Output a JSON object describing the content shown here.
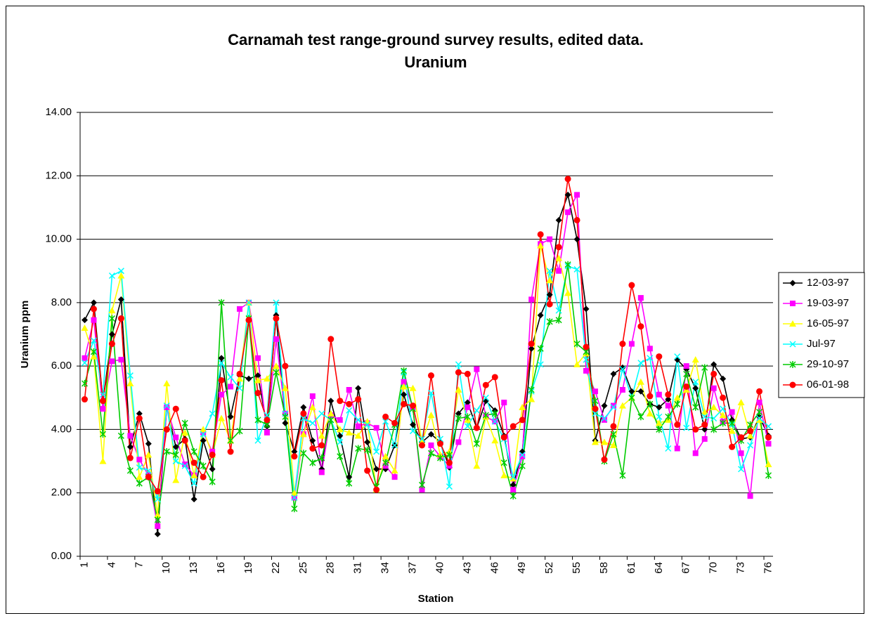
{
  "chart_data": {
    "type": "line",
    "title": [
      "Carnamah test range-ground survey results, edited data.",
      "Uranium"
    ],
    "xlabel": "Station",
    "ylabel": "Uranium ppm",
    "categories": [
      1,
      null,
      null,
      4,
      null,
      null,
      7,
      null,
      null,
      10,
      null,
      null,
      13,
      null,
      null,
      16,
      null,
      null,
      19,
      null,
      null,
      22,
      null,
      null,
      25,
      null,
      null,
      28,
      null,
      null,
      31,
      null,
      null,
      34,
      null,
      null,
      37,
      null,
      null,
      40,
      null,
      null,
      43,
      null,
      null,
      46,
      null,
      null,
      49,
      null,
      null,
      52,
      null,
      null,
      55,
      null,
      null,
      58,
      null,
      null,
      61,
      null,
      null,
      64,
      null,
      null,
      67,
      null,
      null,
      70,
      null,
      null,
      73,
      null,
      null,
      76
    ],
    "ylim": [
      0,
      14
    ],
    "yticks": [
      {
        "value": 0,
        "label": "0.00"
      },
      {
        "value": 2,
        "label": "2.00"
      },
      {
        "value": 4,
        "label": "4.00"
      },
      {
        "value": 6,
        "label": "6.00"
      },
      {
        "value": 8,
        "label": "8.00"
      },
      {
        "value": 10,
        "label": "10.00"
      },
      {
        "value": 12,
        "label": "12.00"
      },
      {
        "value": 14,
        "label": "14.00"
      }
    ],
    "grid": true,
    "legend": "right",
    "series": [
      {
        "name": "12-03-97",
        "color": "#000000",
        "marker": "diamond",
        "values": [
          7.45,
          8.0,
          4.9,
          7.0,
          8.1,
          3.45,
          4.5,
          3.55,
          0.7,
          4.7,
          3.45,
          3.7,
          1.8,
          3.65,
          2.75,
          6.25,
          4.4,
          5.7,
          5.6,
          5.7,
          4.1,
          7.6,
          4.2,
          3.3,
          4.7,
          3.65,
          2.75,
          4.9,
          3.8,
          2.5,
          5.3,
          3.6,
          2.75,
          2.75,
          3.5,
          5.1,
          4.15,
          3.6,
          3.85,
          3.6,
          2.8,
          4.5,
          4.85,
          4.05,
          4.9,
          4.6,
          3.8,
          2.25,
          3.3,
          6.55,
          7.6,
          8.25,
          10.6,
          11.4,
          10.0,
          7.8,
          3.65,
          4.75,
          5.75,
          5.95,
          5.2,
          5.2,
          4.8,
          4.7,
          4.95,
          6.2,
          5.9,
          5.3,
          4.0,
          6.05,
          5.6,
          4.3,
          3.7,
          3.75,
          4.4,
          3.8
        ]
      },
      {
        "name": "19-03-97",
        "color": "#ff00ff",
        "marker": "square",
        "values": [
          6.25,
          7.45,
          4.65,
          6.15,
          6.2,
          3.8,
          3.05,
          2.55,
          0.95,
          4.7,
          3.75,
          2.9,
          2.55,
          3.9,
          3.3,
          5.1,
          5.35,
          7.8,
          8.0,
          6.25,
          3.9,
          6.85,
          4.5,
          1.85,
          3.85,
          5.05,
          2.65,
          4.45,
          4.3,
          5.25,
          4.1,
          4.2,
          4.05,
          2.85,
          2.5,
          5.5,
          4.7,
          2.1,
          3.5,
          3.15,
          2.85,
          3.6,
          4.7,
          5.9,
          4.4,
          4.25,
          4.85,
          2.1,
          3.15,
          8.1,
          9.85,
          10.0,
          9.0,
          10.85,
          11.4,
          5.85,
          5.2,
          4.3,
          4.75,
          5.25,
          6.7,
          8.15,
          6.55,
          5.1,
          4.75,
          3.4,
          6.0,
          3.25,
          3.7,
          5.3,
          4.25,
          4.55,
          3.25,
          1.9,
          4.85,
          3.55
        ]
      },
      {
        "name": "16-05-97",
        "color": "#ffff00",
        "marker": "triangle",
        "values": [
          7.2,
          6.3,
          3.0,
          7.75,
          8.85,
          5.45,
          2.5,
          3.2,
          1.3,
          5.45,
          2.4,
          3.9,
          2.55,
          4.0,
          3.2,
          4.35,
          3.65,
          5.6,
          8.0,
          5.55,
          5.6,
          6.0,
          5.3,
          2.0,
          3.85,
          4.7,
          3.8,
          4.5,
          4.0,
          3.9,
          3.8,
          4.25,
          2.1,
          3.15,
          2.7,
          5.35,
          5.3,
          3.6,
          4.45,
          3.2,
          3.3,
          5.25,
          4.3,
          2.85,
          4.4,
          3.65,
          2.55,
          2.45,
          4.7,
          4.95,
          9.8,
          8.7,
          9.4,
          8.3,
          6.05,
          6.4,
          3.6,
          3.6,
          3.5,
          4.75,
          5.0,
          5.5,
          4.5,
          4.2,
          4.3,
          5.0,
          5.25,
          6.2,
          4.55,
          4.7,
          4.45,
          3.95,
          4.85,
          3.8,
          4.3,
          2.9
        ]
      },
      {
        "name": "Jul-97",
        "color": "#00ffff",
        "marker": "x",
        "values": [
          6.1,
          6.8,
          5.1,
          8.85,
          9.0,
          5.7,
          2.8,
          2.7,
          1.8,
          4.75,
          3.0,
          2.85,
          2.3,
          3.85,
          4.5,
          6.1,
          5.65,
          5.3,
          8.0,
          3.65,
          4.45,
          8.0,
          4.5,
          1.85,
          4.35,
          4.2,
          4.5,
          4.3,
          3.6,
          4.6,
          4.3,
          4.15,
          3.3,
          4.25,
          3.5,
          5.8,
          3.95,
          3.7,
          5.15,
          3.7,
          2.2,
          6.05,
          4.1,
          4.6,
          5.0,
          4.25,
          3.7,
          2.5,
          3.2,
          5.2,
          6.05,
          9.0,
          7.75,
          9.15,
          9.05,
          6.2,
          4.5,
          4.35,
          4.7,
          5.9,
          5.0,
          6.1,
          6.25,
          4.4,
          3.4,
          6.3,
          4.05,
          5.5,
          4.4,
          4.35,
          4.65,
          4.15,
          2.75,
          3.5,
          4.35,
          4.1
        ]
      },
      {
        "name": "29-10-97",
        "color": "#00cc00",
        "marker": "asterisk",
        "values": [
          5.45,
          6.45,
          3.85,
          7.5,
          3.8,
          2.7,
          2.3,
          2.5,
          1.15,
          3.3,
          3.2,
          4.2,
          3.3,
          2.85,
          2.35,
          8.0,
          3.65,
          3.95,
          7.5,
          4.3,
          4.15,
          5.8,
          4.4,
          1.5,
          3.25,
          2.95,
          3.1,
          4.3,
          3.15,
          2.3,
          3.4,
          3.35,
          2.2,
          2.95,
          4.15,
          5.85,
          4.65,
          2.25,
          3.25,
          3.1,
          3.2,
          4.35,
          4.4,
          3.55,
          4.45,
          4.5,
          2.95,
          1.9,
          2.85,
          5.25,
          6.55,
          7.4,
          7.45,
          9.2,
          6.7,
          6.45,
          4.9,
          3.0,
          3.85,
          2.55,
          5.0,
          4.4,
          4.8,
          4.0,
          4.4,
          4.8,
          5.75,
          4.7,
          5.95,
          4.0,
          4.2,
          4.2,
          3.65,
          4.15,
          4.55,
          2.55
        ]
      },
      {
        "name": "06-01-98",
        "color": "#ff0000",
        "marker": "circle",
        "values": [
          4.95,
          7.8,
          4.9,
          6.7,
          7.5,
          3.1,
          4.35,
          2.5,
          2.05,
          4.0,
          4.65,
          3.65,
          2.95,
          2.5,
          3.2,
          5.55,
          3.3,
          5.75,
          7.45,
          5.15,
          4.3,
          7.5,
          6.0,
          3.15,
          4.5,
          3.4,
          3.5,
          6.85,
          4.9,
          4.8,
          4.95,
          2.7,
          2.1,
          4.4,
          4.2,
          4.8,
          4.75,
          3.5,
          5.7,
          3.55,
          2.95,
          5.8,
          5.75,
          4.05,
          5.4,
          5.65,
          3.75,
          4.1,
          4.3,
          6.7,
          10.15,
          7.95,
          9.75,
          11.9,
          10.6,
          6.6,
          4.65,
          3.05,
          4.1,
          6.7,
          8.55,
          7.25,
          5.05,
          6.3,
          5.1,
          4.15,
          5.35,
          4.0,
          4.15,
          5.75,
          5.0,
          3.45,
          3.75,
          3.95,
          5.2,
          3.75
        ]
      }
    ]
  }
}
